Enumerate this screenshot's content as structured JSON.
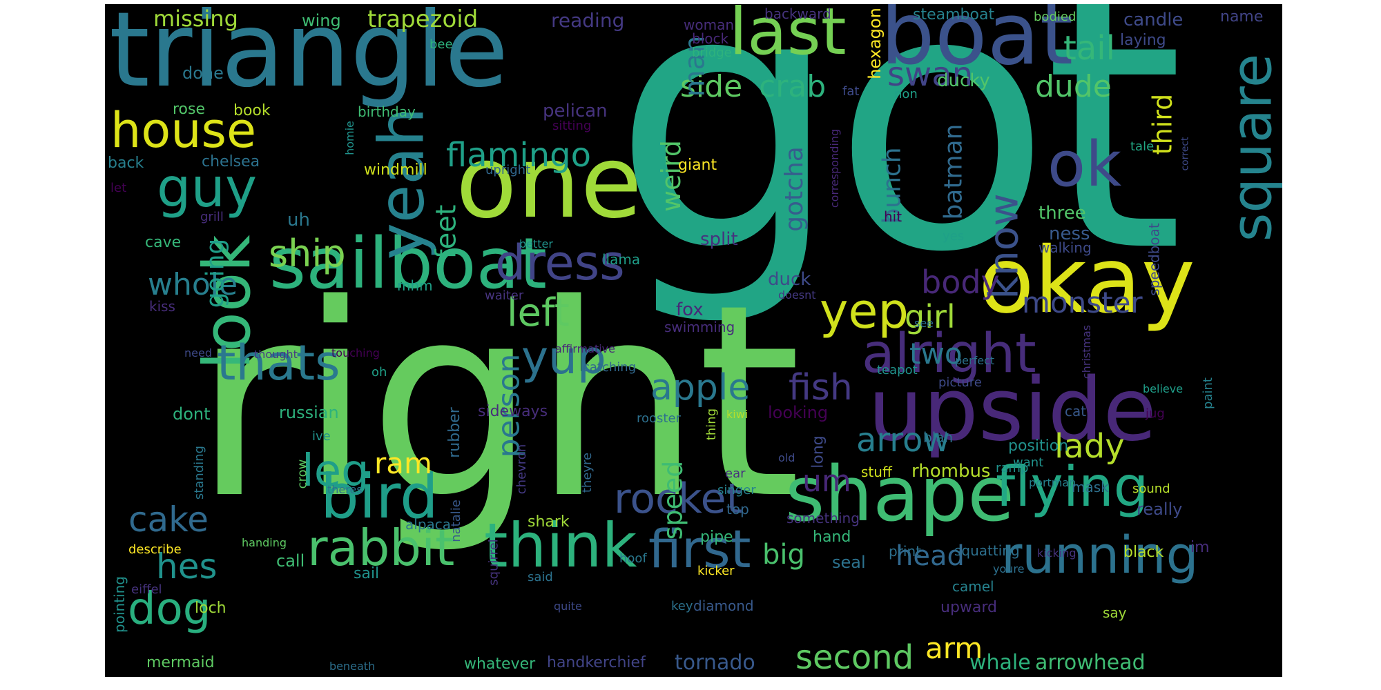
{
  "wordcloud": {
    "background": "#000000",
    "words": [
      {
        "text": "got",
        "color": "#21a585"
      },
      {
        "text": "right",
        "color": "#65cb5e"
      },
      {
        "text": "triangle",
        "color": "#2a788e"
      },
      {
        "text": "one",
        "color": "#a0da39"
      },
      {
        "text": "boat",
        "color": "#3b528b"
      },
      {
        "text": "okay",
        "color": "#dde318"
      },
      {
        "text": "upside",
        "color": "#482878"
      },
      {
        "text": "shape",
        "color": "#3fbc73"
      },
      {
        "text": "sailboat",
        "color": "#2db27d"
      },
      {
        "text": "last",
        "color": "#75d054"
      },
      {
        "text": "yeah",
        "color": "#26828e"
      },
      {
        "text": "look",
        "color": "#35b779"
      },
      {
        "text": "bird",
        "color": "#1f9e89"
      },
      {
        "text": "flying",
        "color": "#22a884"
      },
      {
        "text": "think",
        "color": "#2db27d"
      },
      {
        "text": "rabbit",
        "color": "#4ac16d"
      },
      {
        "text": "running",
        "color": "#2c728e"
      },
      {
        "text": "first",
        "color": "#31688e"
      },
      {
        "text": "alright",
        "color": "#472d7b"
      },
      {
        "text": "house",
        "color": "#dde318"
      },
      {
        "text": "square",
        "color": "#25848e"
      },
      {
        "text": "ok",
        "color": "#3e4a89"
      },
      {
        "text": "guy",
        "color": "#1fa088"
      },
      {
        "text": "dress",
        "color": "#414487"
      },
      {
        "text": "thats",
        "color": "#2a788e"
      },
      {
        "text": "yep",
        "color": "#d0e11c"
      },
      {
        "text": "yup",
        "color": "#2c728e"
      },
      {
        "text": "dog",
        "color": "#29af7f"
      },
      {
        "text": "rocket",
        "color": "#3b528b"
      },
      {
        "text": "second",
        "color": "#5ec962"
      },
      {
        "text": "flamingo",
        "color": "#1fa088"
      },
      {
        "text": "know",
        "color": "#3b528b"
      },
      {
        "text": "apple",
        "color": "#2a788e"
      },
      {
        "text": "fish",
        "color": "#443983"
      },
      {
        "text": "leg",
        "color": "#1f9e89"
      },
      {
        "text": "arrow",
        "color": "#277f8e"
      },
      {
        "text": "lady",
        "color": "#b5de2b"
      },
      {
        "text": "girl",
        "color": "#a0da39"
      },
      {
        "text": "ship",
        "color": "#7ad151"
      },
      {
        "text": "left",
        "color": "#5ec962"
      },
      {
        "text": "cake",
        "color": "#306a8e"
      },
      {
        "text": "hes",
        "color": "#20928c"
      },
      {
        "text": "swan",
        "color": "#414487"
      },
      {
        "text": "tail",
        "color": "#35b779"
      },
      {
        "text": "crab",
        "color": "#2db27d"
      },
      {
        "text": "side",
        "color": "#5ec962"
      },
      {
        "text": "dude",
        "color": "#52c569"
      },
      {
        "text": "monster",
        "color": "#3e4a89"
      },
      {
        "text": "body",
        "color": "#482878"
      },
      {
        "text": "two",
        "color": "#2a788e"
      },
      {
        "text": "whole",
        "color": "#277f8e"
      },
      {
        "text": "person",
        "color": "#2a788e"
      },
      {
        "text": "ram",
        "color": "#fde725"
      },
      {
        "text": "um",
        "color": "#482878"
      },
      {
        "text": "speed",
        "color": "#3fbc73"
      },
      {
        "text": "head",
        "color": "#31688e"
      },
      {
        "text": "big",
        "color": "#4ac16d"
      },
      {
        "text": "arm",
        "color": "#fde725"
      },
      {
        "text": "whale",
        "color": "#2db27d"
      },
      {
        "text": "arrowhead",
        "color": "#3fbc73"
      },
      {
        "text": "tornado",
        "color": "#38598c"
      },
      {
        "text": "third",
        "color": "#d0e11c"
      },
      {
        "text": "batman",
        "color": "#306a8e"
      },
      {
        "text": "bunch",
        "color": "#2c728e"
      },
      {
        "text": "gotcha",
        "color": "#365d8d"
      },
      {
        "text": "weird",
        "color": "#52c569"
      },
      {
        "text": "feet",
        "color": "#2db27d"
      },
      {
        "text": "going",
        "color": "#1f9e89"
      },
      {
        "text": "man",
        "color": "#2a788e"
      },
      {
        "text": "done",
        "color": "#2a788e"
      },
      {
        "text": "missing",
        "color": "#a0da39"
      },
      {
        "text": "trapezoid",
        "color": "#a0da39"
      },
      {
        "text": "wing",
        "color": "#3fbc73"
      },
      {
        "text": "reading",
        "color": "#443983"
      },
      {
        "text": "woman",
        "color": "#472d7b"
      },
      {
        "text": "backward",
        "color": "#46337e"
      },
      {
        "text": "steamboat",
        "color": "#26828e"
      },
      {
        "text": "bodied",
        "color": "#65cb5e"
      },
      {
        "text": "candle",
        "color": "#3e4a89"
      },
      {
        "text": "name",
        "color": "#414487"
      },
      {
        "text": "hexagon",
        "color": "#fde725"
      },
      {
        "text": "laying",
        "color": "#3e4a89"
      },
      {
        "text": "bee",
        "color": "#2db27d"
      },
      {
        "text": "block",
        "color": "#482878"
      },
      {
        "text": "bridge",
        "color": "#2db27d"
      },
      {
        "text": "ducky",
        "color": "#52c569"
      },
      {
        "text": "fat",
        "color": "#3e4a89"
      },
      {
        "text": "non",
        "color": "#1fa088"
      },
      {
        "text": "rose",
        "color": "#52c569"
      },
      {
        "text": "book",
        "color": "#b5de2b"
      },
      {
        "text": "birthday",
        "color": "#3fbc73"
      },
      {
        "text": "pelican",
        "color": "#46337e"
      },
      {
        "text": "sitting",
        "color": "#440154"
      },
      {
        "text": "homie",
        "color": "#20928c"
      },
      {
        "text": "back",
        "color": "#277f8e"
      },
      {
        "text": "chelsea",
        "color": "#2c728e"
      },
      {
        "text": "windmill",
        "color": "#d0e11c"
      },
      {
        "text": "upright",
        "color": "#31688e"
      },
      {
        "text": "giant",
        "color": "#fde725"
      },
      {
        "text": "corresponding",
        "color": "#482878"
      },
      {
        "text": "tale",
        "color": "#22a884"
      },
      {
        "text": "correct",
        "color": "#3e4a89"
      },
      {
        "text": "let",
        "color": "#440154"
      },
      {
        "text": "grill",
        "color": "#472d7b"
      },
      {
        "text": "uh",
        "color": "#2a788e"
      },
      {
        "text": "cave",
        "color": "#35b779"
      },
      {
        "text": "better",
        "color": "#20928c"
      },
      {
        "text": "llama",
        "color": "#1f9e89"
      },
      {
        "text": "split",
        "color": "#46337e"
      },
      {
        "text": "hit",
        "color": "#440154"
      },
      {
        "text": "three",
        "color": "#52c569"
      },
      {
        "text": "ness",
        "color": "#38598c"
      },
      {
        "text": "walking",
        "color": "#3e4a89"
      },
      {
        "text": "yes",
        "color": "#1fa088"
      },
      {
        "text": "speedboat",
        "color": "#3e4a89"
      },
      {
        "text": "mhm",
        "color": "#1fa088"
      },
      {
        "text": "kiss",
        "color": "#472d7b"
      },
      {
        "text": "duck",
        "color": "#3e4a89"
      },
      {
        "text": "waiter",
        "color": "#46337e"
      },
      {
        "text": "doesnt",
        "color": "#443983"
      },
      {
        "text": "fox",
        "color": "#482878"
      },
      {
        "text": "swimming",
        "color": "#472d7b"
      },
      {
        "text": "see",
        "color": "#2c728e"
      },
      {
        "text": "affirmative",
        "color": "#482878"
      },
      {
        "text": "catching",
        "color": "#31688e"
      },
      {
        "text": "need",
        "color": "#3e4a89"
      },
      {
        "text": "thought",
        "color": "#443983"
      },
      {
        "text": "touching",
        "color": "#440154"
      },
      {
        "text": "oh",
        "color": "#1fa088"
      },
      {
        "text": "perfect",
        "color": "#2c728e"
      },
      {
        "text": "christmas",
        "color": "#46337e"
      },
      {
        "text": "teapot",
        "color": "#20928c"
      },
      {
        "text": "picture",
        "color": "#3e4a89"
      },
      {
        "text": "believe",
        "color": "#1f9e89"
      },
      {
        "text": "paint",
        "color": "#26828e"
      },
      {
        "text": "dont",
        "color": "#2db27d"
      },
      {
        "text": "russian",
        "color": "#2db27d"
      },
      {
        "text": "rubber",
        "color": "#306a8e"
      },
      {
        "text": "sideways",
        "color": "#472d7b"
      },
      {
        "text": "rooster",
        "color": "#2d708e"
      },
      {
        "text": "thing",
        "color": "#a0da39"
      },
      {
        "text": "kiwi",
        "color": "#b5de2b"
      },
      {
        "text": "cat",
        "color": "#38598c"
      },
      {
        "text": "jug",
        "color": "#440154"
      },
      {
        "text": "ive",
        "color": "#21918c"
      },
      {
        "text": "looking",
        "color": "#440154"
      },
      {
        "text": "long",
        "color": "#3e4a89"
      },
      {
        "text": "blah",
        "color": "#2c728e"
      },
      {
        "text": "position",
        "color": "#21918c"
      },
      {
        "text": "want",
        "color": "#20928c"
      },
      {
        "text": "crow",
        "color": "#5ec962"
      },
      {
        "text": "standing",
        "color": "#2a788e"
      },
      {
        "text": "old",
        "color": "#3e4a89"
      },
      {
        "text": "ear",
        "color": "#46337e"
      },
      {
        "text": "rhombus",
        "color": "#b5de2b"
      },
      {
        "text": "stuff",
        "color": "#d0e11c"
      },
      {
        "text": "ramp",
        "color": "#20928c"
      },
      {
        "text": "portman",
        "color": "#26828e"
      },
      {
        "text": "theyre",
        "color": "#31688e"
      },
      {
        "text": "chevron",
        "color": "#443983"
      },
      {
        "text": "natalie",
        "color": "#38598c"
      },
      {
        "text": "theres",
        "color": "#2d708e"
      },
      {
        "text": "singer",
        "color": "#26828e"
      },
      {
        "text": "mask",
        "color": "#2d708e"
      },
      {
        "text": "sound",
        "color": "#b5de2b"
      },
      {
        "text": "really",
        "color": "#3e4a89"
      },
      {
        "text": "alpaca",
        "color": "#2a788e"
      },
      {
        "text": "top",
        "color": "#31688e"
      },
      {
        "text": "something",
        "color": "#46337e"
      },
      {
        "text": "shark",
        "color": "#a0da39"
      },
      {
        "text": "describe",
        "color": "#fde725"
      },
      {
        "text": "handing",
        "color": "#5ec962"
      },
      {
        "text": "pipe",
        "color": "#35b779"
      },
      {
        "text": "hand",
        "color": "#35b779"
      },
      {
        "text": "print",
        "color": "#2d708e"
      },
      {
        "text": "squatting",
        "color": "#2d708e"
      },
      {
        "text": "kicking",
        "color": "#46337e"
      },
      {
        "text": "black",
        "color": "#b5de2b"
      },
      {
        "text": "im",
        "color": "#472d7b"
      },
      {
        "text": "call",
        "color": "#3fbc73"
      },
      {
        "text": "seal",
        "color": "#2c728e"
      },
      {
        "text": "pointing",
        "color": "#21918c"
      },
      {
        "text": "sail",
        "color": "#20928c"
      },
      {
        "text": "hoof",
        "color": "#2a788e"
      },
      {
        "text": "kicker",
        "color": "#fde725"
      },
      {
        "text": "youre",
        "color": "#2d708e"
      },
      {
        "text": "camel",
        "color": "#26828e"
      },
      {
        "text": "eiffel",
        "color": "#46337e"
      },
      {
        "text": "squirrel",
        "color": "#46337e"
      },
      {
        "text": "said",
        "color": "#2c728e"
      },
      {
        "text": "loch",
        "color": "#a0da39"
      },
      {
        "text": "quite",
        "color": "#3e4a89"
      },
      {
        "text": "key",
        "color": "#2c728e"
      },
      {
        "text": "diamond",
        "color": "#38598c"
      },
      {
        "text": "upward",
        "color": "#472d7b"
      },
      {
        "text": "say",
        "color": "#a0da39"
      },
      {
        "text": "mermaid",
        "color": "#5ec962"
      },
      {
        "text": "whatever",
        "color": "#35b779"
      },
      {
        "text": "handkerchief",
        "color": "#414487"
      },
      {
        "text": "beneath",
        "color": "#2d708e"
      }
    ]
  }
}
